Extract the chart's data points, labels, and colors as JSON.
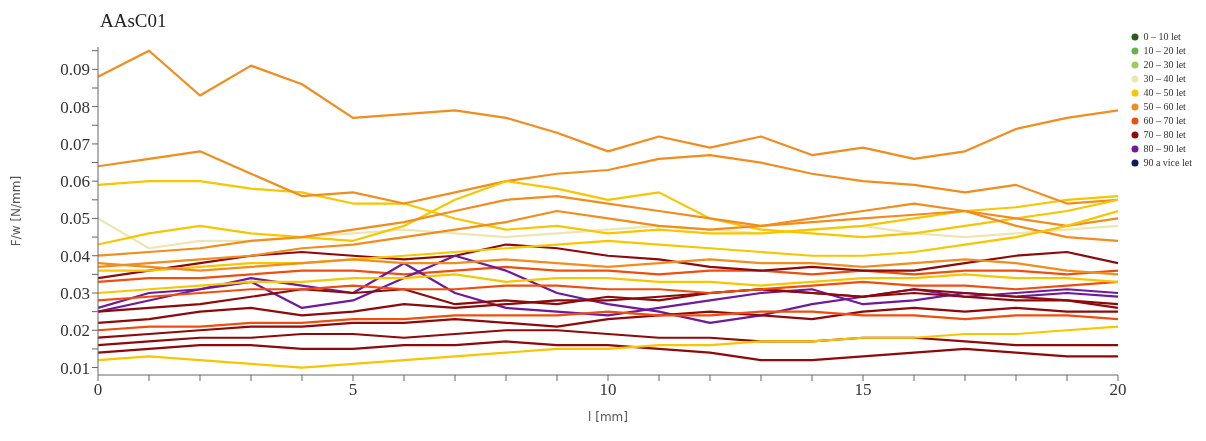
{
  "chart_data": {
    "type": "line",
    "title": "AAsC01",
    "xlabel": "l [mm]",
    "ylabel": "F/w [N/mm]",
    "x": [
      0,
      1,
      2,
      3,
      4,
      5,
      6,
      7,
      8,
      9,
      10,
      11,
      12,
      13,
      14,
      15,
      16,
      17,
      18,
      19,
      20
    ],
    "xlim": [
      0,
      20
    ],
    "xticks": [
      0,
      {
        "value": 1,
        "label": null
      },
      {
        "value": 2,
        "label": null
      },
      {
        "value": 3,
        "label": null
      },
      {
        "value": 4,
        "label": null
      },
      5,
      {
        "value": 6,
        "label": null
      },
      {
        "value": 7,
        "label": null
      },
      {
        "value": 8,
        "label": null
      },
      {
        "value": 9,
        "label": null
      },
      10,
      {
        "value": 11,
        "label": null
      },
      {
        "value": 12,
        "label": null
      },
      {
        "value": 13,
        "label": null
      },
      {
        "value": 14,
        "label": null
      },
      15,
      {
        "value": 16,
        "label": null
      },
      {
        "value": 17,
        "label": null
      },
      {
        "value": 18,
        "label": null
      },
      {
        "value": 19,
        "label": null
      },
      20
    ],
    "ylim": [
      0.008,
      0.096
    ],
    "yticks": [
      0.01,
      {
        "value": 0.015,
        "label": null
      },
      0.02,
      {
        "value": 0.025,
        "label": null
      },
      0.03,
      {
        "value": 0.035,
        "label": null
      },
      0.04,
      {
        "value": 0.045,
        "label": null
      },
      0.05,
      {
        "value": 0.055,
        "label": null
      },
      0.06,
      {
        "value": 0.065,
        "label": null
      },
      0.07,
      {
        "value": 0.075,
        "label": null
      },
      0.08,
      {
        "value": 0.085,
        "label": null
      },
      0.09,
      {
        "value": 0.095,
        "label": null
      }
    ],
    "grid": false,
    "legend": "top right",
    "marker": "none",
    "line_style": "solid",
    "series": [
      {
        "name": "0 – 10 let",
        "color": "#2d5a1e",
        "values": [
          null,
          null,
          null,
          null,
          null,
          null,
          null,
          null,
          null,
          null,
          null,
          null,
          null,
          null,
          null,
          null,
          null,
          null,
          null,
          null,
          null
        ]
      },
      {
        "name": "10 – 20 let",
        "color": "#6ab04c",
        "values": [
          null,
          null,
          null,
          null,
          null,
          null,
          null,
          null,
          null,
          null,
          null,
          null,
          null,
          null,
          null,
          null,
          null,
          null,
          null,
          null,
          null
        ]
      },
      {
        "name": "20 – 30 let",
        "color": "#9acd5a",
        "values": [
          null,
          null,
          null,
          null,
          null,
          null,
          null,
          null,
          null,
          null,
          null,
          null,
          null,
          null,
          null,
          null,
          null,
          null,
          null,
          null,
          null
        ]
      },
      {
        "name": "30 – 40 let",
        "color": "#ece7b0",
        "values": [
          0.05,
          0.042,
          0.044,
          0.044,
          0.045,
          0.046,
          0.047,
          0.046,
          0.045,
          0.046,
          0.047,
          0.048,
          0.047,
          0.046,
          0.047,
          0.048,
          0.046,
          0.045,
          0.046,
          0.047,
          0.048
        ]
      },
      {
        "name": "40 – 50 let",
        "color": "#f7c600",
        "values": [
          0.059,
          0.06,
          0.06,
          0.058,
          0.057,
          0.054,
          0.054,
          0.05,
          0.047,
          0.048,
          0.046,
          0.047,
          0.046,
          0.046,
          0.047,
          0.048,
          0.05,
          0.052,
          0.053,
          0.055,
          0.056
        ]
      },
      {
        "name": "50 – 60 let",
        "color": "#f28c1c",
        "values": [
          0.088,
          0.095,
          0.083,
          0.091,
          0.086,
          0.077,
          0.078,
          0.079,
          0.077,
          0.073,
          0.068,
          0.072,
          0.069,
          0.072,
          0.067,
          0.069,
          0.066,
          0.068,
          0.074,
          0.077,
          0.079
        ]
      },
      {
        "name": "60 – 70 let",
        "color": "#f04e0c",
        "values": [
          0.033,
          0.034,
          0.034,
          0.035,
          0.036,
          0.036,
          0.035,
          0.036,
          0.037,
          0.036,
          0.036,
          0.035,
          0.036,
          0.036,
          0.035,
          0.036,
          0.035,
          0.036,
          0.036,
          0.035,
          0.036
        ]
      },
      {
        "name": "70 – 80 let",
        "color": "#8e0a0a",
        "values": [
          0.034,
          0.036,
          0.038,
          0.04,
          0.041,
          0.04,
          0.039,
          0.04,
          0.043,
          0.042,
          0.04,
          0.039,
          0.037,
          0.036,
          0.037,
          0.036,
          0.036,
          0.038,
          0.04,
          0.041,
          0.038
        ]
      },
      {
        "name": "80 – 90 let",
        "color": "#6e1a9a",
        "values": [
          0.026,
          0.03,
          0.031,
          0.034,
          0.032,
          0.03,
          0.038,
          0.03,
          0.026,
          0.025,
          0.024,
          0.026,
          0.028,
          0.03,
          0.031,
          0.027,
          0.028,
          0.03,
          0.029,
          0.03,
          0.029
        ]
      },
      {
        "name": "90 a vice let",
        "color": "#0a1a5a",
        "values": [
          null,
          null,
          null,
          null,
          null,
          null,
          null,
          null,
          null,
          null,
          null,
          null,
          null,
          null,
          null,
          null,
          null,
          null,
          null,
          null,
          null
        ]
      },
      {
        "color": "#f28c1c",
        "values": [
          0.064,
          0.066,
          0.068,
          0.062,
          0.056,
          0.057,
          0.054,
          0.057,
          0.06,
          0.062,
          0.063,
          0.066,
          0.067,
          0.065,
          0.062,
          0.06,
          0.059,
          0.057,
          0.059,
          0.054,
          0.055
        ]
      },
      {
        "color": "#f7c600",
        "values": [
          0.043,
          0.046,
          0.048,
          0.046,
          0.045,
          0.044,
          0.048,
          0.055,
          0.06,
          0.058,
          0.055,
          0.057,
          0.05,
          0.047,
          0.046,
          0.045,
          0.046,
          0.048,
          0.05,
          0.052,
          0.055
        ]
      },
      {
        "color": "#f28c1c",
        "values": [
          0.04,
          0.041,
          0.042,
          0.044,
          0.045,
          0.047,
          0.049,
          0.052,
          0.055,
          0.056,
          0.054,
          0.052,
          0.05,
          0.048,
          0.049,
          0.05,
          0.051,
          0.052,
          0.05,
          0.048,
          0.05
        ]
      },
      {
        "color": "#f28c1c",
        "values": [
          0.037,
          0.038,
          0.039,
          0.04,
          0.042,
          0.043,
          0.045,
          0.047,
          0.049,
          0.052,
          0.05,
          0.048,
          0.047,
          0.048,
          0.05,
          0.052,
          0.054,
          0.052,
          0.048,
          0.045,
          0.044
        ]
      },
      {
        "color": "#f7c600",
        "values": [
          0.036,
          0.036,
          0.037,
          0.038,
          0.038,
          0.039,
          0.04,
          0.041,
          0.042,
          0.043,
          0.044,
          0.043,
          0.042,
          0.041,
          0.04,
          0.04,
          0.041,
          0.043,
          0.045,
          0.048,
          0.052
        ]
      },
      {
        "color": "#6e1a9a",
        "values": [
          0.025,
          0.028,
          0.031,
          0.033,
          0.026,
          0.028,
          0.034,
          0.04,
          0.036,
          0.03,
          0.027,
          0.025,
          0.022,
          0.024,
          0.027,
          0.029,
          0.031,
          0.029,
          0.03,
          0.031,
          0.03
        ]
      },
      {
        "color": "#8e0a0a",
        "values": [
          0.025,
          0.026,
          0.027,
          0.029,
          0.031,
          0.03,
          0.031,
          0.027,
          0.028,
          0.027,
          0.029,
          0.028,
          0.03,
          0.031,
          0.03,
          0.029,
          0.03,
          0.029,
          0.028,
          0.028,
          0.027
        ]
      },
      {
        "color": "#8e0a0a",
        "values": [
          0.022,
          0.023,
          0.025,
          0.026,
          0.024,
          0.025,
          0.027,
          0.026,
          0.027,
          0.028,
          0.028,
          0.029,
          0.03,
          0.031,
          0.03,
          0.029,
          0.031,
          0.03,
          0.029,
          0.028,
          0.026
        ]
      },
      {
        "color": "#8e0a0a",
        "values": [
          0.018,
          0.019,
          0.02,
          0.021,
          0.021,
          0.022,
          0.022,
          0.023,
          0.022,
          0.021,
          0.023,
          0.024,
          0.025,
          0.024,
          0.023,
          0.025,
          0.026,
          0.025,
          0.026,
          0.025,
          0.025
        ]
      },
      {
        "color": "#8e0a0a",
        "values": [
          0.014,
          0.015,
          0.016,
          0.016,
          0.015,
          0.015,
          0.016,
          0.016,
          0.017,
          0.016,
          0.016,
          0.015,
          0.014,
          0.012,
          0.012,
          0.013,
          0.014,
          0.015,
          0.014,
          0.013,
          0.013
        ]
      },
      {
        "color": "#8e0a0a",
        "values": [
          0.016,
          0.017,
          0.018,
          0.018,
          0.019,
          0.019,
          0.018,
          0.019,
          0.02,
          0.02,
          0.019,
          0.018,
          0.018,
          0.017,
          0.017,
          0.018,
          0.018,
          0.017,
          0.016,
          0.016,
          0.016
        ]
      },
      {
        "color": "#f7c600",
        "values": [
          0.012,
          0.013,
          0.012,
          0.011,
          0.01,
          0.011,
          0.012,
          0.013,
          0.014,
          0.015,
          0.015,
          0.016,
          0.016,
          0.017,
          0.017,
          0.018,
          0.018,
          0.019,
          0.019,
          0.02,
          0.021
        ]
      },
      {
        "color": "#f04e0c",
        "values": [
          0.02,
          0.021,
          0.021,
          0.022,
          0.022,
          0.023,
          0.023,
          0.024,
          0.024,
          0.024,
          0.025,
          0.024,
          0.024,
          0.025,
          0.025,
          0.024,
          0.024,
          0.023,
          0.024,
          0.024,
          0.023
        ]
      },
      {
        "color": "#f04e0c",
        "values": [
          0.028,
          0.029,
          0.03,
          0.031,
          0.031,
          0.032,
          0.031,
          0.031,
          0.032,
          0.032,
          0.031,
          0.031,
          0.03,
          0.031,
          0.032,
          0.033,
          0.032,
          0.032,
          0.031,
          0.032,
          0.033
        ]
      },
      {
        "color": "#f28c1c",
        "values": [
          0.038,
          0.037,
          0.036,
          0.037,
          0.038,
          0.039,
          0.038,
          0.038,
          0.039,
          0.038,
          0.037,
          0.038,
          0.039,
          0.038,
          0.038,
          0.037,
          0.038,
          0.039,
          0.038,
          0.036,
          0.035
        ]
      },
      {
        "color": "#f7c600",
        "values": [
          0.03,
          0.031,
          0.032,
          0.033,
          0.033,
          0.034,
          0.034,
          0.035,
          0.033,
          0.034,
          0.034,
          0.033,
          0.033,
          0.032,
          0.033,
          0.034,
          0.034,
          0.035,
          0.034,
          0.034,
          0.033
        ]
      }
    ]
  }
}
